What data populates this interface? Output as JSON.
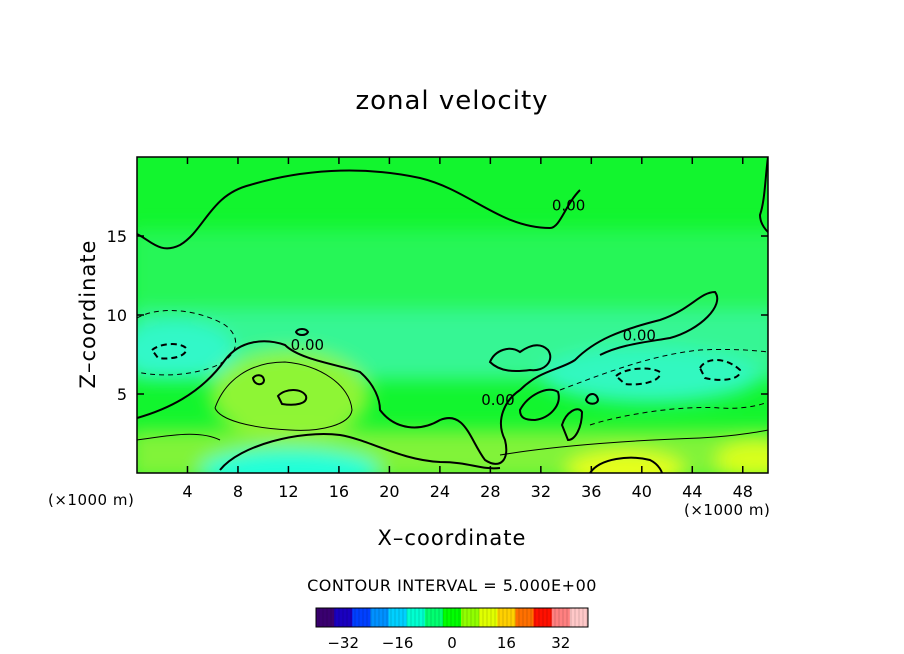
{
  "chart_data": {
    "type": "heatmap",
    "title": "zonal velocity",
    "xlabel": "X–coordinate",
    "ylabel": "Z–coordinate",
    "x_unit_left": "(×1000 m)",
    "x_unit_right": "(×1000 m)",
    "xlim": [
      0,
      50
    ],
    "ylim": [
      0,
      20
    ],
    "xticks": [
      4,
      8,
      12,
      16,
      20,
      24,
      28,
      32,
      36,
      40,
      44,
      48
    ],
    "yticks": [
      5,
      10,
      15
    ],
    "contour_labels": [
      {
        "text": "0.00",
        "x": 13.5,
        "y": 7.8
      },
      {
        "text": "0.00",
        "x": 34.2,
        "y": 16.6
      },
      {
        "text": "0.00",
        "x": 28.6,
        "y": 4.3
      },
      {
        "text": "0.00",
        "x": 39.8,
        "y": 8.4
      }
    ],
    "contour_interval_label": "CONTOUR INTERVAL = 5.000E+00",
    "colorbar": {
      "min": -40,
      "max": 40,
      "ticks": [
        -32,
        -16,
        0,
        16,
        32
      ],
      "tick_labels": [
        "−32",
        "−16",
        "0",
        "16",
        "32"
      ],
      "colors": [
        "#3a0070",
        "#1a00c0",
        "#0040ff",
        "#0090ff",
        "#00d0ff",
        "#00ffd0",
        "#00ff70",
        "#00ff00",
        "#90ff00",
        "#e0ff00",
        "#ffd000",
        "#ff7000",
        "#ff1000",
        "#ff8080",
        "#ffc8c8"
      ]
    },
    "field_colors": {
      "upper": "#12f52e",
      "band": "#3cf7a6",
      "lower": "#8ef536",
      "strong_neg": "#20ffd8",
      "strong_pos": "#e6ff1c"
    }
  }
}
